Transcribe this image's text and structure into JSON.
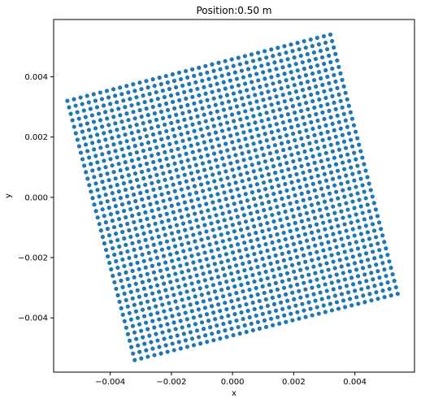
{
  "chart_data": {
    "type": "scatter",
    "title": "Position:0.50 m",
    "xlabel": "x",
    "ylabel": "y",
    "xlim": [
      -0.00585,
      0.00595
    ],
    "ylim": [
      -0.0058,
      0.0059
    ],
    "xticks": [
      -0.004,
      -0.002,
      0.0,
      0.002,
      0.004
    ],
    "xtick_labels": [
      "−0.004",
      "−0.002",
      "0.000",
      "0.002",
      "0.004"
    ],
    "yticks": [
      -0.004,
      -0.002,
      0.0,
      0.002,
      0.004
    ],
    "ytick_labels": [
      "−0.004",
      "−0.002",
      "0.000",
      "0.002",
      "0.004"
    ],
    "grid": false,
    "marker_color": "#1f77b4",
    "series": [
      {
        "description": "rotated square grid of points",
        "corners": [
          [
            -0.0054,
            0.0032
          ],
          [
            0.0032,
            0.0054
          ],
          [
            0.0054,
            -0.0032
          ],
          [
            -0.0032,
            -0.0054
          ]
        ],
        "points_per_side": 41
      }
    ]
  }
}
